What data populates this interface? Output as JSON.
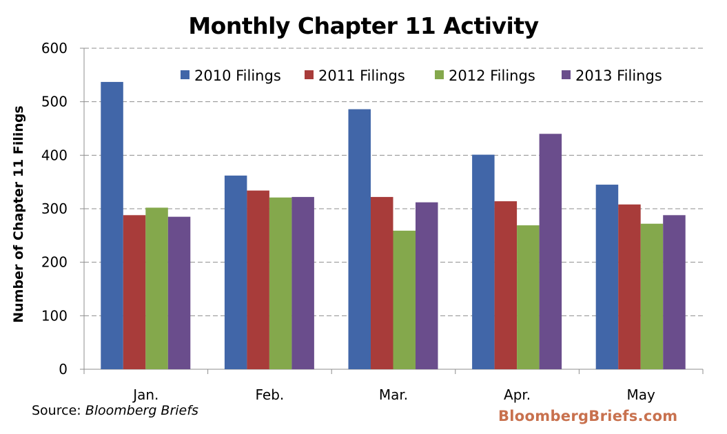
{
  "chart_data": {
    "type": "bar",
    "title": "Monthly Chapter 11 Activity",
    "ylabel": "Number of Chapter 11 Filings",
    "xlabel": "",
    "ylim": [
      0,
      600
    ],
    "yticks": [
      0,
      100,
      200,
      300,
      400,
      500,
      600
    ],
    "grid": true,
    "legend_position": "top",
    "categories": [
      "Jan.",
      "Feb.",
      "Mar.",
      "Apr.",
      "May"
    ],
    "series": [
      {
        "name": "2010 Filings",
        "color": "#4166a8",
        "values": [
          537,
          362,
          486,
          401,
          345
        ]
      },
      {
        "name": "2011 Filings",
        "color": "#a83c3a",
        "values": [
          288,
          334,
          322,
          314,
          308
        ]
      },
      {
        "name": "2012 Filings",
        "color": "#84a84c",
        "values": [
          302,
          321,
          259,
          269,
          272
        ]
      },
      {
        "name": "2013 Filings",
        "color": "#6a4d8c",
        "values": [
          285,
          322,
          312,
          440,
          288
        ]
      }
    ]
  },
  "footer": {
    "source_label": "Source: ",
    "source_name": "Bloomberg Briefs",
    "watermark": "BloombergBriefs.com",
    "watermark_color": "#c8714e"
  }
}
